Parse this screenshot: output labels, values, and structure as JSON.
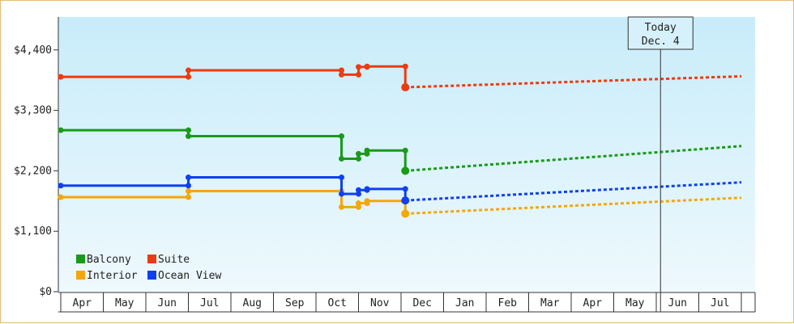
{
  "chart_data": {
    "type": "line",
    "title": "",
    "xlabel": "",
    "ylabel": "",
    "x_months": [
      "Apr",
      "May",
      "Jun",
      "Jul",
      "Aug",
      "Sep",
      "Oct",
      "Nov",
      "Dec",
      "Jan",
      "Feb",
      "Mar",
      "Apr",
      "May",
      "Jun",
      "Jul"
    ],
    "ylim": [
      0,
      5000
    ],
    "y_ticks": [
      0,
      1100,
      2200,
      3300,
      4400
    ],
    "y_tick_labels": [
      "$0",
      "$1,100",
      "$2,200",
      "$3,300",
      "$4,400"
    ],
    "today_marker": {
      "line1": "Today",
      "line2": "Dec. 4",
      "x": 14.1
    },
    "legend_placement": "bottom-left",
    "series": [
      {
        "name": "Balcony",
        "color": "#1a9a1a",
        "history": [
          [
            0,
            2940
          ],
          [
            3,
            2940
          ],
          [
            3,
            2830
          ],
          [
            6.6,
            2830
          ],
          [
            6.6,
            2420
          ],
          [
            7.0,
            2420
          ],
          [
            7.0,
            2510
          ],
          [
            7.2,
            2510
          ],
          [
            7.2,
            2570
          ],
          [
            8.1,
            2570
          ],
          [
            8.1,
            2200
          ]
        ],
        "points": [
          [
            0,
            2940
          ],
          [
            3,
            2940
          ],
          [
            3,
            2830
          ],
          [
            6.6,
            2830
          ],
          [
            6.6,
            2420
          ],
          [
            7.0,
            2420
          ],
          [
            7.0,
            2510
          ],
          [
            7.2,
            2510
          ],
          [
            7.2,
            2570
          ],
          [
            8.1,
            2570
          ],
          [
            8.1,
            2200
          ]
        ],
        "forecast": [
          [
            8.1,
            2200
          ],
          [
            16,
            2650
          ]
        ]
      },
      {
        "name": "Suite",
        "color": "#ee3a10",
        "history": [
          [
            0,
            3910
          ],
          [
            3,
            3910
          ],
          [
            3,
            4030
          ],
          [
            6.6,
            4030
          ],
          [
            6.6,
            3950
          ],
          [
            7.0,
            3950
          ],
          [
            7.0,
            4090
          ],
          [
            7.2,
            4090
          ],
          [
            7.2,
            4100
          ],
          [
            8.1,
            4100
          ],
          [
            8.1,
            3720
          ]
        ],
        "points": [
          [
            0,
            3910
          ],
          [
            3,
            3910
          ],
          [
            3,
            4030
          ],
          [
            6.6,
            4030
          ],
          [
            6.6,
            3950
          ],
          [
            7.0,
            3950
          ],
          [
            7.0,
            4090
          ],
          [
            7.2,
            4090
          ],
          [
            7.2,
            4100
          ],
          [
            8.1,
            4100
          ],
          [
            8.1,
            3720
          ]
        ],
        "forecast": [
          [
            8.1,
            3720
          ],
          [
            16,
            3920
          ]
        ]
      },
      {
        "name": "Interior",
        "color": "#f5a60a",
        "history": [
          [
            0,
            1720
          ],
          [
            3,
            1720
          ],
          [
            3,
            1830
          ],
          [
            6.6,
            1830
          ],
          [
            6.6,
            1540
          ],
          [
            7.0,
            1540
          ],
          [
            7.0,
            1610
          ],
          [
            7.2,
            1610
          ],
          [
            7.2,
            1650
          ],
          [
            8.1,
            1650
          ],
          [
            8.1,
            1420
          ]
        ],
        "points": [
          [
            0,
            1720
          ],
          [
            3,
            1720
          ],
          [
            3,
            1830
          ],
          [
            6.6,
            1830
          ],
          [
            6.6,
            1540
          ],
          [
            7.0,
            1540
          ],
          [
            7.0,
            1610
          ],
          [
            7.2,
            1610
          ],
          [
            7.2,
            1650
          ],
          [
            8.1,
            1650
          ],
          [
            8.1,
            1420
          ]
        ],
        "forecast": [
          [
            8.1,
            1420
          ],
          [
            16,
            1710
          ]
        ]
      },
      {
        "name": "Ocean View",
        "color": "#1040f0",
        "history": [
          [
            0,
            1930
          ],
          [
            3,
            1930
          ],
          [
            3,
            2080
          ],
          [
            6.6,
            2080
          ],
          [
            6.6,
            1780
          ],
          [
            7.0,
            1780
          ],
          [
            7.0,
            1850
          ],
          [
            7.2,
            1850
          ],
          [
            7.2,
            1870
          ],
          [
            8.1,
            1870
          ],
          [
            8.1,
            1660
          ]
        ],
        "points": [
          [
            0,
            1930
          ],
          [
            3,
            1930
          ],
          [
            3,
            2080
          ],
          [
            6.6,
            2080
          ],
          [
            6.6,
            1780
          ],
          [
            7.0,
            1780
          ],
          [
            7.0,
            1850
          ],
          [
            7.2,
            1850
          ],
          [
            7.2,
            1870
          ],
          [
            8.1,
            1870
          ],
          [
            8.1,
            1660
          ]
        ],
        "forecast": [
          [
            8.1,
            1660
          ],
          [
            16,
            1990
          ]
        ]
      }
    ]
  }
}
